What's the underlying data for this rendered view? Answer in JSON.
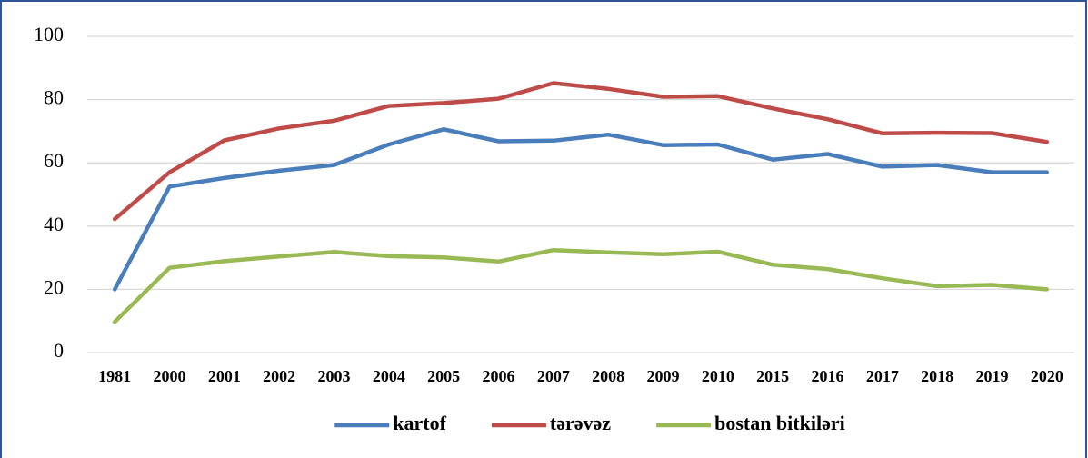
{
  "chart_data": {
    "type": "line",
    "categories": [
      "1981",
      "2000",
      "2001",
      "2002",
      "2003",
      "2004",
      "2005",
      "2006",
      "2007",
      "2008",
      "2009",
      "2010",
      "2015",
      "2016",
      "2017",
      "2018",
      "2019",
      "2020"
    ],
    "series": [
      {
        "name": "kartof",
        "color": "#4a7ebb",
        "values": [
          20,
          52.5,
          55.2,
          57.5,
          59.3,
          65.8,
          70.6,
          66.8,
          67,
          68.9,
          65.6,
          65.8,
          61,
          62.8,
          58.8,
          59.3,
          57,
          57
        ]
      },
      {
        "name": "tərəvəz",
        "color": "#be4b48",
        "values": [
          42.2,
          57,
          67.1,
          70.9,
          73.3,
          78,
          78.9,
          80.3,
          85.2,
          83.4,
          80.9,
          81.1,
          77.2,
          73.8,
          69.3,
          69.5,
          69.4,
          66.6
        ]
      },
      {
        "name": "bostan bitkiləri",
        "color": "#98b954",
        "values": [
          9.7,
          26.8,
          28.9,
          30.4,
          31.8,
          30.5,
          30.1,
          28.8,
          32.4,
          31.7,
          31.1,
          31.9,
          27.8,
          26.4,
          23.5,
          21,
          21.4,
          20
        ]
      }
    ],
    "ylim": [
      0,
      100
    ],
    "yticks": [
      0,
      20,
      40,
      60,
      80,
      100
    ],
    "grid": true,
    "legend": "bottom"
  }
}
